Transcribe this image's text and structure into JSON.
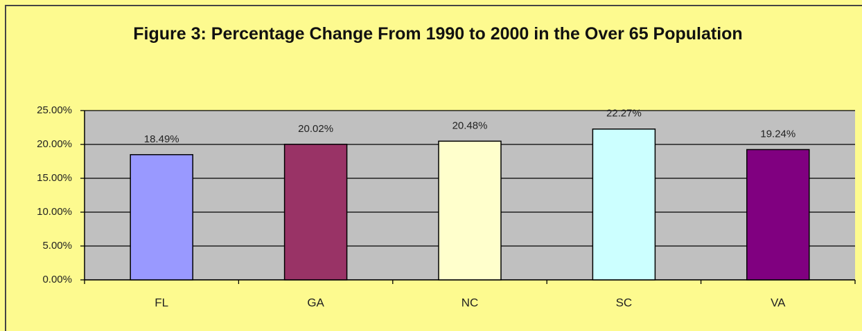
{
  "chart_data": {
    "type": "bar",
    "title": "Figure 3: Percentage Change From 1990 to 2000 in the Over 65 Population",
    "categories": [
      "FL",
      "GA",
      "NC",
      "SC",
      "VA"
    ],
    "values": [
      18.49,
      20.02,
      20.48,
      22.27,
      19.24
    ],
    "value_labels": [
      "18.49%",
      "20.02%",
      "20.48%",
      "22.27%",
      "19.24%"
    ],
    "colors": [
      "#9999ff",
      "#993366",
      "#ffffcc",
      "#ccffff",
      "#800080"
    ],
    "ylim": [
      0,
      25
    ],
    "yticks": [
      {
        "value": 0,
        "label": "0.00%"
      },
      {
        "value": 5,
        "label": "5.00%"
      },
      {
        "value": 10,
        "label": "10.00%"
      },
      {
        "value": 15,
        "label": "15.00%"
      },
      {
        "value": 20,
        "label": "20.00%"
      },
      {
        "value": 25,
        "label": "25.00%"
      }
    ],
    "grid": true
  }
}
